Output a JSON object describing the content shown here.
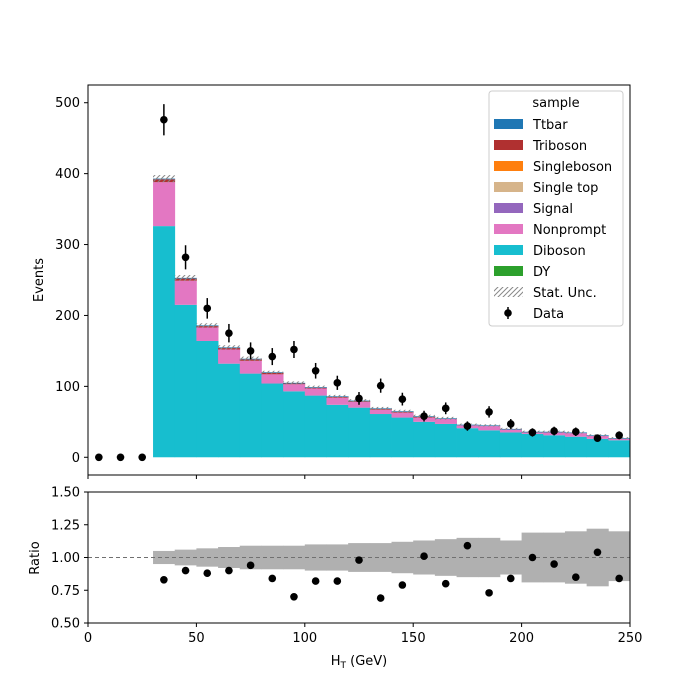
{
  "colors": {
    "Ttbar": "#1f77b4",
    "Triboson": "#b03030",
    "Singleboson": "#ff7f0e",
    "Single top": "#d6b48a",
    "Signal": "#9467bd",
    "Nonprompt": "#e377c2",
    "Diboson": "#17becf",
    "DY": "#2ca02c",
    "data": "#000000",
    "unc": "#b0b0b0",
    "hatch": "#888888"
  },
  "chart_data": {
    "type": "bar",
    "subtype": "stacked histogram with data points and ratio panel",
    "bin_edges": [
      0,
      10,
      20,
      30,
      40,
      50,
      60,
      70,
      80,
      90,
      100,
      110,
      120,
      130,
      140,
      150,
      160,
      170,
      180,
      190,
      200,
      210,
      220,
      230,
      240,
      250
    ],
    "series": [
      {
        "name": "Diboson",
        "values": [
          0,
          0,
          0,
          326,
          215,
          164,
          132,
          118,
          104,
          93,
          87,
          74,
          70,
          61,
          56,
          50,
          47,
          41,
          38,
          35,
          33,
          31,
          29,
          26,
          24
        ]
      },
      {
        "name": "Nonprompt",
        "values": [
          0,
          0,
          0,
          62,
          34,
          19,
          20,
          18,
          13,
          10,
          10,
          10,
          8,
          6,
          7,
          6,
          7,
          4,
          6,
          4,
          2,
          4,
          5,
          4,
          2
        ]
      },
      {
        "name": "Triboson",
        "values": [
          0,
          0,
          0,
          4,
          3,
          2,
          2,
          2,
          2,
          1,
          1,
          1,
          1,
          1,
          1,
          1,
          0,
          0,
          0,
          0,
          0,
          0,
          0,
          0,
          0
        ]
      },
      {
        "name": "Ttbar",
        "values": [
          0,
          0,
          0,
          1,
          1,
          1,
          1,
          1,
          1,
          1,
          1,
          1,
          1,
          1,
          1,
          1,
          1,
          1,
          1,
          1,
          1,
          1,
          1,
          1,
          1
        ]
      },
      {
        "name": "Singleboson",
        "values": [
          0,
          0,
          0,
          0,
          0,
          0,
          0,
          0,
          0,
          0,
          0,
          0,
          0,
          0,
          0,
          0,
          0,
          0,
          0,
          0,
          0,
          0,
          0,
          0,
          0
        ]
      },
      {
        "name": "Single top",
        "values": [
          0,
          0,
          0,
          0,
          0,
          0,
          0,
          0,
          0,
          0,
          0,
          0,
          0,
          0,
          0,
          0,
          0,
          0,
          0,
          0,
          0,
          0,
          0,
          0,
          0
        ]
      },
      {
        "name": "Signal",
        "values": [
          0,
          0,
          0,
          0,
          0,
          0,
          0,
          0,
          0,
          0,
          0,
          0,
          0,
          0,
          0,
          0,
          0,
          0,
          0,
          0,
          0,
          0,
          0,
          0,
          0
        ]
      },
      {
        "name": "DY",
        "values": [
          0,
          0,
          0,
          0,
          0,
          0,
          0,
          0,
          0,
          0,
          0,
          0,
          0,
          0,
          0,
          0,
          0,
          0,
          0,
          0,
          0,
          0,
          0,
          0,
          0
        ]
      }
    ],
    "stat_unc": [
      0,
      0,
      0,
      5,
      4,
      3,
      3,
      3,
      2,
      2,
      2,
      2,
      2,
      2,
      2,
      2,
      2,
      1.5,
      1.5,
      1.5,
      1.5,
      1.5,
      1.5,
      1.5,
      1.5
    ],
    "data": {
      "name": "Data",
      "x": [
        5,
        15,
        25,
        35,
        45,
        55,
        65,
        75,
        85,
        95,
        105,
        115,
        125,
        135,
        145,
        155,
        165,
        175,
        185,
        195,
        205,
        215,
        225,
        235,
        245
      ],
      "y": [
        0,
        0,
        0,
        476,
        282,
        210,
        175,
        150,
        142,
        152,
        122,
        105,
        83,
        101,
        82,
        58,
        69,
        44,
        64,
        47,
        35,
        37,
        36,
        27,
        31
      ],
      "yerr": [
        0,
        0,
        0,
        22,
        17,
        14.5,
        13,
        12,
        12,
        12,
        11,
        10,
        9,
        10,
        9,
        7.6,
        8.3,
        6.6,
        8,
        6.9,
        5.9,
        6.1,
        6,
        5.2,
        5.6
      ]
    },
    "ratio": {
      "values": [
        0.83,
        0.9,
        0.88,
        0.9,
        0.94,
        0.84,
        0.7,
        0.82,
        0.82,
        0.98,
        0.69,
        0.79,
        1.01,
        0.8,
        1.09,
        0.73,
        0.84,
        1.0,
        0.95,
        0.85,
        1.04,
        0.84
      ],
      "band_low": [
        0.95,
        0.94,
        0.93,
        0.92,
        0.91,
        0.91,
        0.91,
        0.9,
        0.9,
        0.89,
        0.89,
        0.88,
        0.87,
        0.86,
        0.85,
        0.85,
        0.87,
        0.81,
        0.81,
        0.8,
        0.78,
        0.82
      ],
      "band_high": [
        1.05,
        1.06,
        1.07,
        1.08,
        1.09,
        1.09,
        1.09,
        1.1,
        1.1,
        1.11,
        1.11,
        1.12,
        1.13,
        1.14,
        1.15,
        1.15,
        1.13,
        1.19,
        1.19,
        1.2,
        1.22,
        1.2
      ],
      "reference": 1.0
    },
    "main_axes": {
      "ylabel": "Events",
      "ylim": [
        -25,
        525
      ],
      "yticks": [
        "0",
        "100",
        "200",
        "300",
        "400",
        "500"
      ]
    },
    "ratio_axes": {
      "ylabel": "Ratio",
      "ylim": [
        0.5,
        1.5
      ],
      "yticks": [
        "0.50",
        "0.75",
        "1.00",
        "1.25",
        "1.50"
      ]
    },
    "x_axis": {
      "label_main": "H",
      "label_sub": "T",
      "label_unit": " (GeV)",
      "xlim": [
        0,
        250
      ],
      "xticks": [
        "0",
        "50",
        "100",
        "150",
        "200",
        "250"
      ]
    },
    "legend": {
      "title": "sample",
      "position": "top-right",
      "entries": [
        "Ttbar",
        "Triboson",
        "Singleboson",
        "Single top",
        "Signal",
        "Nonprompt",
        "Diboson",
        "DY",
        "Stat. Unc.",
        "Data"
      ]
    }
  }
}
